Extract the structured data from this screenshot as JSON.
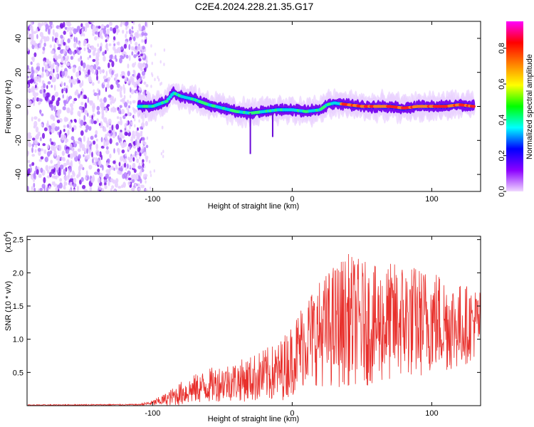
{
  "title": "C2E4.2024.228.21.35.G17",
  "chart_data": [
    {
      "type": "heatmap",
      "name": "spectrogram",
      "xlabel": "Height of straight line (km)",
      "ylabel": "Frequency (Hz)",
      "xlim": [
        -190,
        135
      ],
      "ylim": [
        -50,
        50
      ],
      "x_ticks": [
        -100,
        0,
        100
      ],
      "x_tick_labels": [
        "-100",
        "0",
        "100"
      ],
      "y_ticks": [
        -40,
        -20,
        0,
        20,
        40
      ],
      "y_tick_labels": [
        "-40",
        "-20",
        "0",
        "20",
        "40"
      ],
      "ridge_x": [
        -110,
        -100,
        -90,
        -85,
        -80,
        -70,
        -60,
        -50,
        -40,
        -30,
        -20,
        -10,
        0,
        10,
        20,
        25,
        30,
        40,
        50,
        60,
        70,
        80,
        90,
        100,
        110,
        120,
        130
      ],
      "ridge_freq": [
        0,
        0,
        3,
        8,
        6,
        4,
        1,
        -1,
        -3,
        -4,
        -3,
        -2,
        -2,
        -3,
        -2,
        1,
        2,
        1,
        0,
        0,
        0,
        -1,
        0,
        0,
        0,
        1,
        0
      ],
      "noise_region_x": [
        -190,
        -110
      ],
      "colorbar": {
        "label": "Normalized spectral amplitude",
        "range": [
          0,
          0.95
        ],
        "ticks": [
          0.0,
          0.2,
          0.4,
          0.6,
          0.8
        ],
        "tick_labels": [
          "0.0",
          "0.2",
          "0.4",
          "0.6",
          "0.8"
        ],
        "colors": [
          "#f0d8ff",
          "#8b00ff",
          "#0000ff",
          "#00ffff",
          "#00ff00",
          "#ffff00",
          "#ff8000",
          "#ff0000",
          "#ff00ff"
        ]
      }
    },
    {
      "type": "line",
      "name": "snr",
      "xlabel": "Height of straight line (km)",
      "ylabel": "SNR (10 * v/v)",
      "exponent_label": "(x10",
      "exponent_sup": "4",
      "exponent_close": ")",
      "xlim": [
        -190,
        135
      ],
      "ylim": [
        0,
        25500
      ],
      "x_ticks": [
        -100,
        0,
        100
      ],
      "x_tick_labels": [
        "-100",
        "0",
        "100"
      ],
      "y_ticks": [
        5000,
        10000,
        15000,
        20000,
        25000
      ],
      "y_tick_labels": [
        "0.5",
        "1.0",
        "1.5",
        "2.0",
        "2.5"
      ],
      "color": "#e8302c",
      "envelope_x": [
        -190,
        -110,
        -100,
        -90,
        -80,
        -70,
        -60,
        -50,
        -40,
        -30,
        -20,
        -10,
        0,
        10,
        20,
        30,
        40,
        50,
        60,
        70,
        80,
        90,
        100,
        110,
        120,
        130,
        135
      ],
      "envelope_mean": [
        80,
        150,
        400,
        1000,
        1800,
        2500,
        3000,
        3500,
        3700,
        4000,
        4600,
        5000,
        7000,
        10000,
        11000,
        12000,
        13000,
        12500,
        12000,
        12500,
        13000,
        12500,
        13000,
        12500,
        12000,
        12500,
        12500
      ],
      "envelope_amp": [
        80,
        100,
        400,
        1000,
        1800,
        2200,
        2600,
        2800,
        3000,
        3500,
        4000,
        4500,
        5500,
        7000,
        8000,
        9500,
        10000,
        9500,
        9000,
        9000,
        9000,
        8500,
        8000,
        7500,
        6500,
        5500,
        5000
      ]
    }
  ]
}
